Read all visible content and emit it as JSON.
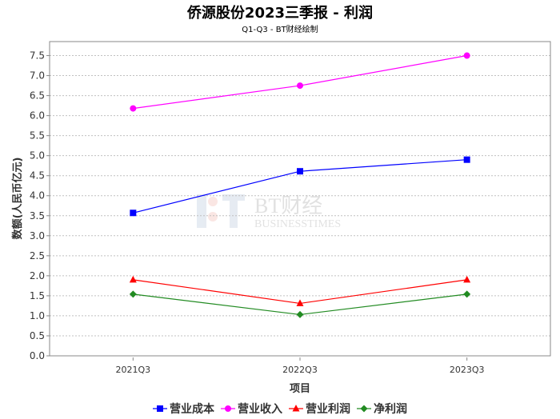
{
  "chart_data": {
    "type": "line",
    "title": "侨源股份2023三季报 - 利润",
    "subtitle": "Q1-Q3 - BT财经绘制",
    "xlabel": "项目",
    "ylabel": "数额(人民币亿元)",
    "categories": [
      "2021Q3",
      "2022Q3",
      "2023Q3"
    ],
    "ylim": [
      0,
      7.85
    ],
    "yticks": [
      "0.0",
      "0.5",
      "1.0",
      "1.5",
      "2.0",
      "2.5",
      "3.0",
      "3.5",
      "4.0",
      "4.5",
      "5.0",
      "5.5",
      "6.0",
      "6.5",
      "7.0",
      "7.5"
    ],
    "grid": true,
    "legend_position": "bottom",
    "series": [
      {
        "name": "营业成本",
        "values": [
          3.57,
          4.61,
          4.9
        ],
        "color": "#0000ff",
        "marker": "square"
      },
      {
        "name": "营业收入",
        "values": [
          6.18,
          6.75,
          7.5
        ],
        "color": "#ff00ff",
        "marker": "circle"
      },
      {
        "name": "营业利润",
        "values": [
          1.9,
          1.31,
          1.9
        ],
        "color": "#ff0000",
        "marker": "triangle"
      },
      {
        "name": "净利润",
        "values": [
          1.54,
          1.03,
          1.54
        ],
        "color": "#228b22",
        "marker": "diamond"
      }
    ],
    "watermark": "BT财经 BUSINESSTIMES"
  }
}
